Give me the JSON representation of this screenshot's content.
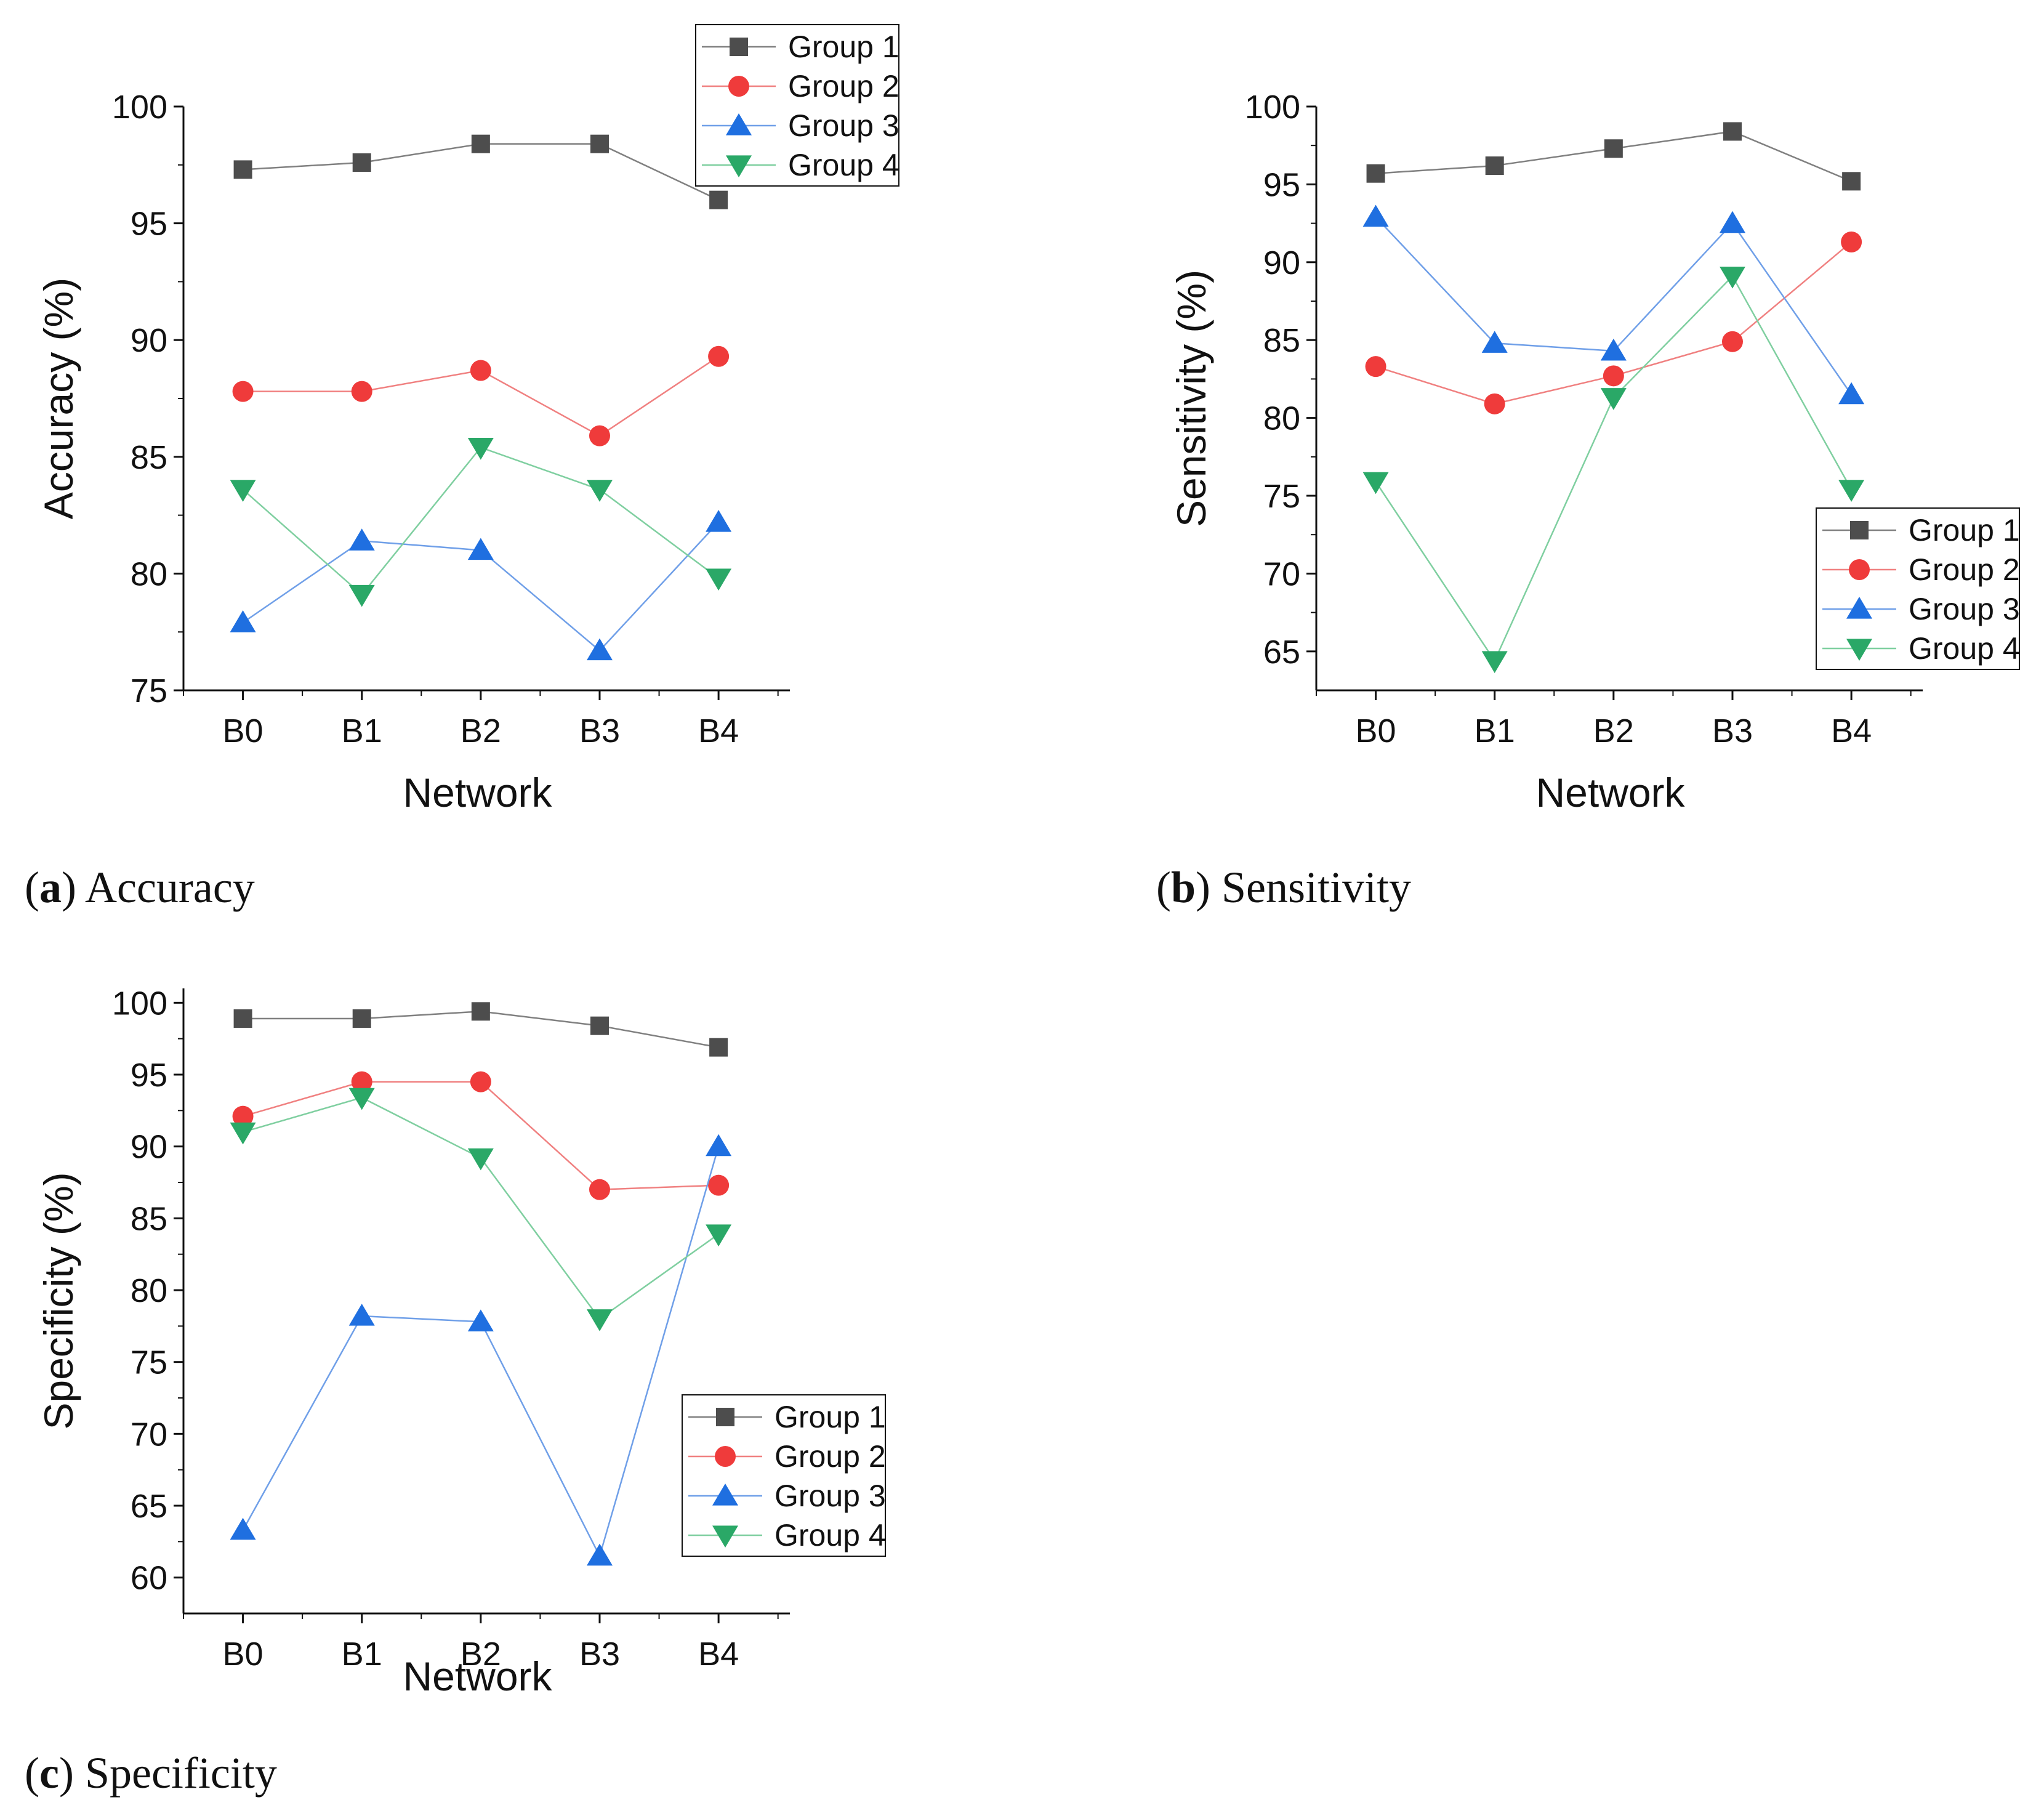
{
  "colors": {
    "group1": "#4d4d4d",
    "group2": "#ef3b3b",
    "group3": "#1f6fe0",
    "group4": "#2aa867",
    "line1": "#808080",
    "line2": "#f08080",
    "line3": "#6f9fe8",
    "line4": "#7fcfa0"
  },
  "captions": [
    {
      "label": "a",
      "text": "Accuracy"
    },
    {
      "label": "b",
      "text": "Sensitivity"
    },
    {
      "label": "c",
      "text": "Specificity"
    }
  ],
  "chart_data": [
    {
      "type": "line",
      "xlabel": "Network",
      "ylabel": "Accuracy (%)",
      "categories": [
        "B0",
        "B1",
        "B2",
        "B3",
        "B4"
      ],
      "ylim": [
        75,
        100
      ],
      "yticks": [
        75,
        80,
        85,
        90,
        95,
        100
      ],
      "legend_position": "top-right",
      "series": [
        {
          "name": "Group 1",
          "marker": "square",
          "values": [
            97.3,
            97.6,
            98.4,
            98.4,
            96.0
          ]
        },
        {
          "name": "Group 2",
          "marker": "circle",
          "values": [
            87.8,
            87.8,
            88.7,
            85.9,
            89.3
          ]
        },
        {
          "name": "Group 3",
          "marker": "triangle-up",
          "values": [
            77.9,
            81.4,
            81.0,
            76.7,
            82.2
          ]
        },
        {
          "name": "Group 4",
          "marker": "triangle-down",
          "values": [
            83.6,
            79.1,
            85.4,
            83.6,
            79.8
          ]
        }
      ]
    },
    {
      "type": "line",
      "xlabel": "Network",
      "ylabel": "Sensitivity (%)",
      "categories": [
        "B0",
        "B1",
        "B2",
        "B3",
        "B4"
      ],
      "ylim": [
        62.5,
        100
      ],
      "yticks": [
        65,
        70,
        75,
        80,
        85,
        90,
        95,
        100
      ],
      "legend_position": "bottom-right",
      "series": [
        {
          "name": "Group 1",
          "marker": "square",
          "values": [
            95.7,
            96.2,
            97.3,
            98.4,
            95.2
          ]
        },
        {
          "name": "Group 2",
          "marker": "circle",
          "values": [
            83.3,
            80.9,
            82.7,
            84.9,
            91.3
          ]
        },
        {
          "name": "Group 3",
          "marker": "triangle-up",
          "values": [
            92.9,
            84.8,
            84.3,
            92.5,
            81.5
          ]
        },
        {
          "name": "Group 4",
          "marker": "triangle-down",
          "values": [
            75.9,
            64.4,
            81.3,
            89.1,
            75.4
          ]
        }
      ]
    },
    {
      "type": "line",
      "xlabel": "Network",
      "ylabel": "Specificity (%)",
      "categories": [
        "B0",
        "B1",
        "B2",
        "B3",
        "B4"
      ],
      "ylim": [
        57.5,
        101
      ],
      "yticks": [
        60,
        65,
        70,
        75,
        80,
        85,
        90,
        95,
        100
      ],
      "legend_position": "bottom-right",
      "series": [
        {
          "name": "Group 1",
          "marker": "square",
          "values": [
            98.9,
            98.9,
            99.4,
            98.4,
            96.9
          ]
        },
        {
          "name": "Group 2",
          "marker": "circle",
          "values": [
            92.1,
            94.5,
            94.5,
            87.0,
            87.3
          ]
        },
        {
          "name": "Group 3",
          "marker": "triangle-up",
          "values": [
            63.3,
            78.2,
            77.8,
            61.5,
            90.0
          ]
        },
        {
          "name": "Group 4",
          "marker": "triangle-down",
          "values": [
            91.0,
            93.4,
            89.2,
            78.0,
            83.9
          ]
        }
      ]
    }
  ]
}
